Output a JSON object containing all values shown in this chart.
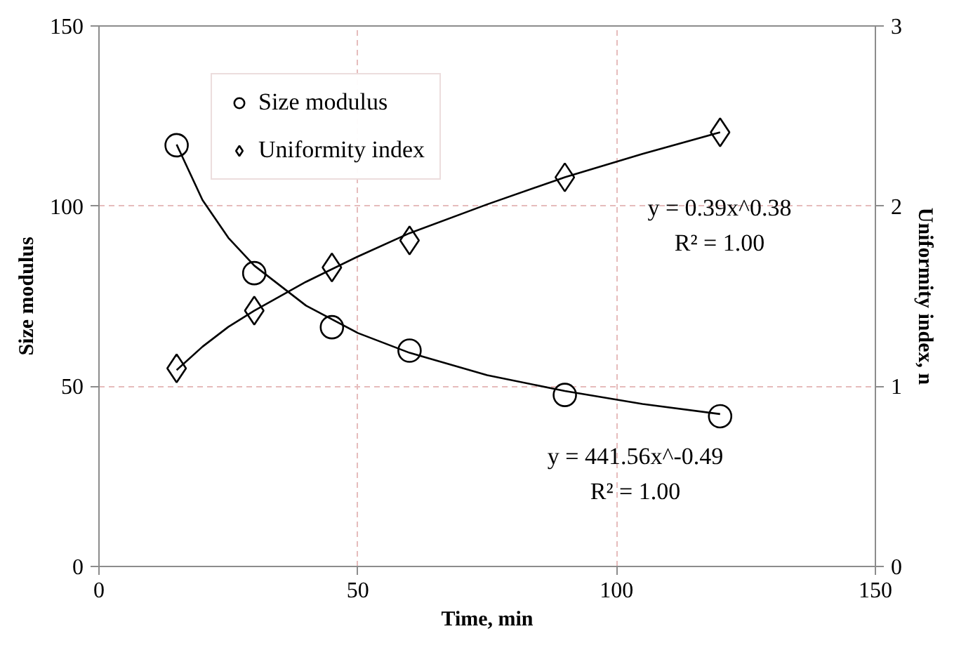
{
  "chart_data": {
    "type": "scatter",
    "xlabel": "Time, min",
    "ylabel": "Size modulus",
    "y2label": "Uniformity index, n",
    "xlim": [
      0,
      150
    ],
    "xticks": [
      0,
      50,
      100,
      150
    ],
    "ylim": [
      0,
      150
    ],
    "yticks": [
      0,
      50,
      100,
      150
    ],
    "y2lim": [
      0,
      3
    ],
    "y2ticks": [
      0,
      1,
      2,
      3
    ],
    "grid": true,
    "legend": "top left",
    "series": [
      {
        "name": "Size modulus",
        "marker": "circle",
        "color": "#000000",
        "x": [
          15,
          30,
          45,
          60,
          90,
          120
        ],
        "values": [
          116.9,
          81.4,
          66.4,
          59.9,
          47.6,
          41.7
        ]
      },
      {
        "name": "Uniformity index",
        "marker": "diamond",
        "color": "#000000",
        "axis": "y2",
        "x": [
          15,
          30,
          45,
          60,
          90,
          120
        ],
        "values": [
          1.1,
          1.42,
          1.66,
          1.81,
          2.16,
          2.41
        ]
      },
      {
        "type": "line",
        "color": "#000000",
        "x": [
          15,
          20,
          25,
          30,
          40,
          50,
          60,
          75,
          90,
          105,
          120
        ],
        "values": [
          117.1,
          101.7,
          91.2,
          83.5,
          72.4,
          64.8,
          59.3,
          53.1,
          48.7,
          45.1,
          42.3
        ]
      },
      {
        "type": "line",
        "color": "#000000",
        "axis": "y2",
        "x": [
          15,
          20,
          25,
          30,
          40,
          50,
          60,
          75,
          90,
          105,
          120
        ],
        "values": [
          1.09,
          1.22,
          1.33,
          1.42,
          1.58,
          1.72,
          1.85,
          2.01,
          2.16,
          2.29,
          2.41
        ]
      }
    ],
    "annotations": [
      "y = 0.39x^0.38\nR² = 1.00",
      "y = 441.56x^-0.49\nR² = 1.00"
    ]
  }
}
